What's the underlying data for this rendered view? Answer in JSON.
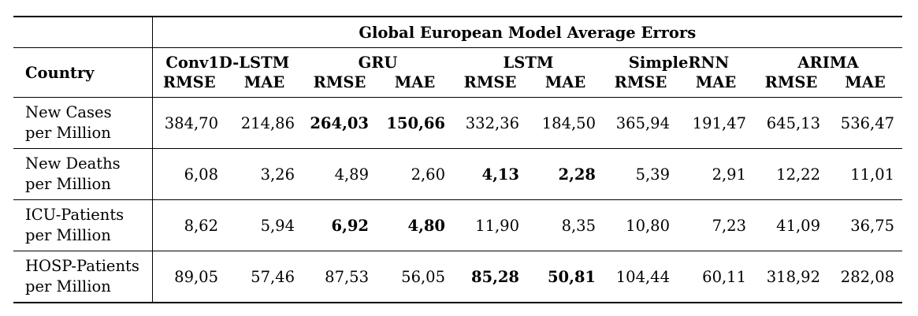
{
  "table": {
    "super_header": "Global European Model Average Errors",
    "row_header": "Country",
    "models": [
      {
        "name": "Conv1D-LSTM",
        "metrics": [
          "RMSE",
          "MAE"
        ]
      },
      {
        "name": "GRU",
        "metrics": [
          "RMSE",
          "MAE"
        ]
      },
      {
        "name": "LSTM",
        "metrics": [
          "RMSE",
          "MAE"
        ]
      },
      {
        "name": "SimpleRNN",
        "metrics": [
          "RMSE",
          "MAE"
        ]
      },
      {
        "name": "ARIMA",
        "metrics": [
          "RMSE",
          "MAE"
        ]
      }
    ],
    "rows": [
      {
        "label_line1": "New Cases",
        "label_line2": "per Million",
        "values": [
          "384,70",
          "214,86",
          "264,03",
          "150,66",
          "332,36",
          "184,50",
          "365,94",
          "191,47",
          "645,13",
          "536,47"
        ],
        "bold_model": "GRU"
      },
      {
        "label_line1": "New Deaths",
        "label_line2": "per Million",
        "values": [
          "6,08",
          "3,26",
          "4,89",
          "2,60",
          "4,13",
          "2,28",
          "5,39",
          "2,91",
          "12,22",
          "11,01"
        ],
        "bold_model": "LSTM"
      },
      {
        "label_line1": "ICU-Patients",
        "label_line2": "per Million",
        "values": [
          "8,62",
          "5,94",
          "6,92",
          "4,80",
          "11,90",
          "8,35",
          "10,80",
          "7,23",
          "41,09",
          "36,75"
        ],
        "bold_model": "GRU"
      },
      {
        "label_line1": "HOSP-Patients",
        "label_line2": "per Million",
        "values": [
          "89,05",
          "57,46",
          "87,53",
          "56,05",
          "85,28",
          "50,81",
          "104,44",
          "60,11",
          "318,92",
          "282,08"
        ],
        "bold_model": "LSTM"
      }
    ]
  }
}
